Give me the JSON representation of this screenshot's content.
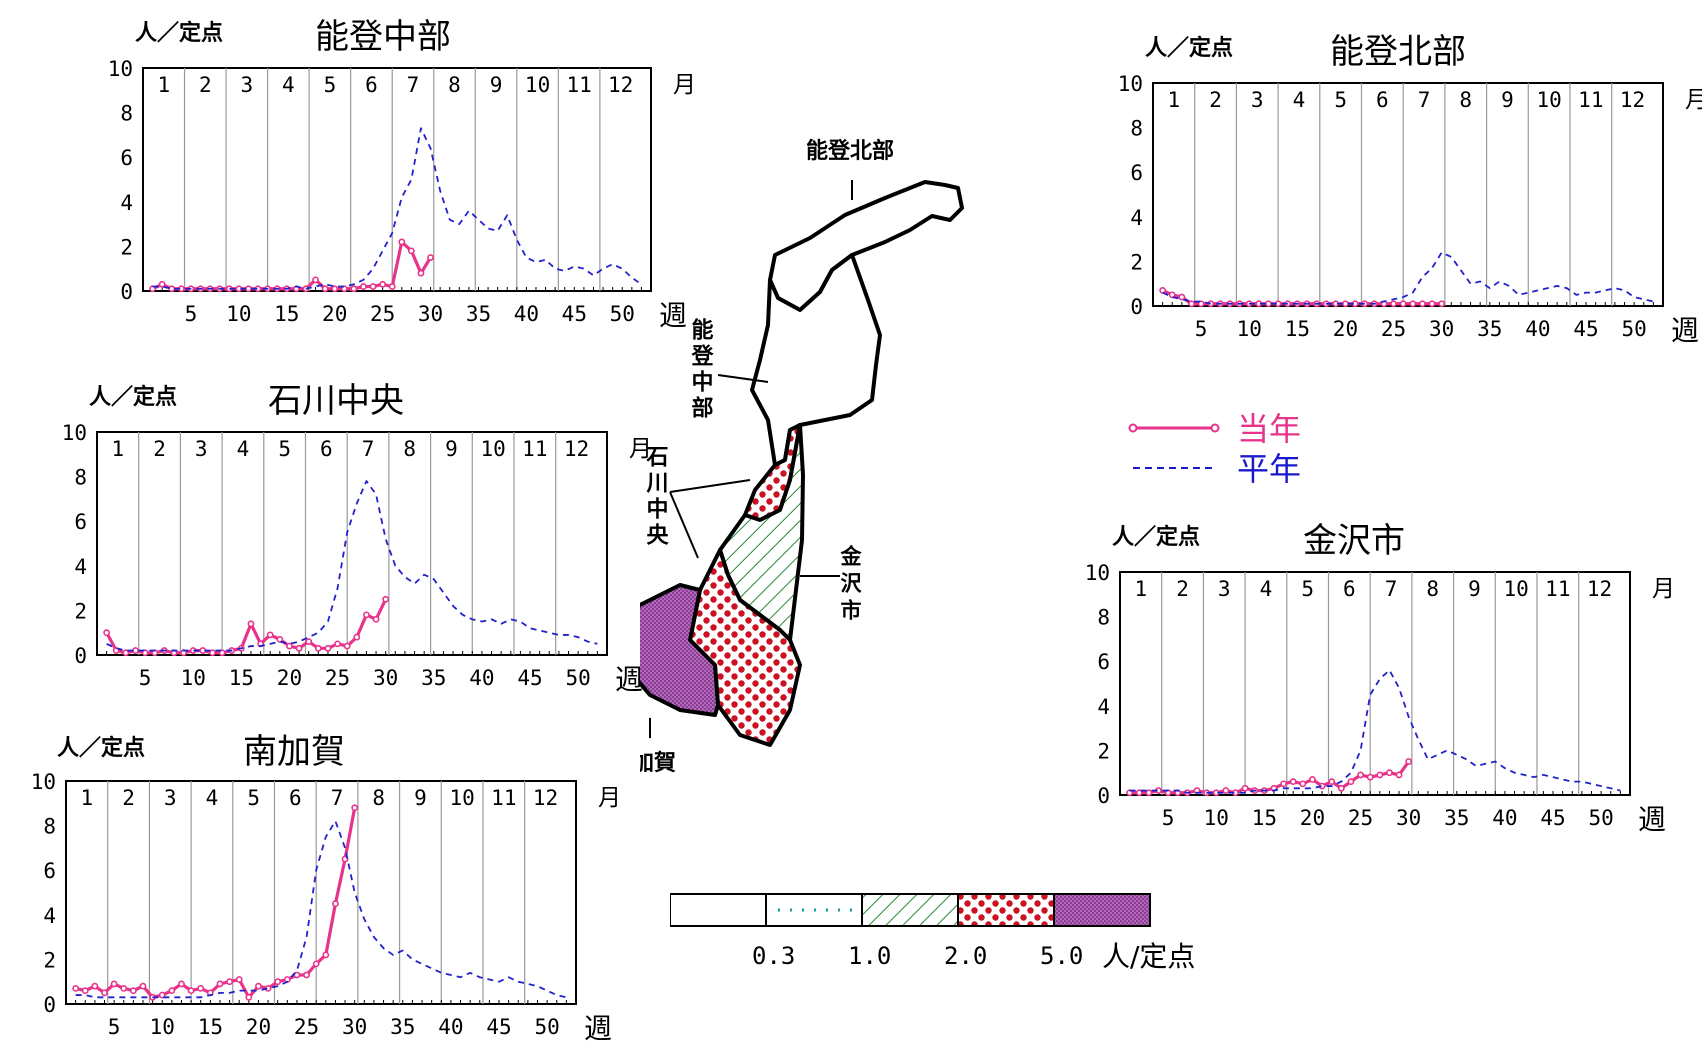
{
  "colors": {
    "current": "#e8338a",
    "average": "#2222cc",
    "frame": "#000000",
    "grid": "#999999",
    "legend_current": "#e8338a",
    "legend_average": "#1a1acc"
  },
  "common": {
    "unit": "人／定点",
    "month_word": "月",
    "week_word": "週",
    "months": [
      "1",
      "2",
      "3",
      "4",
      "5",
      "6",
      "7",
      "8",
      "9",
      "10",
      "11",
      "12"
    ],
    "y_ticks": [
      "0",
      "2",
      "4",
      "6",
      "8",
      "10"
    ],
    "x_ticks": [
      "5",
      "10",
      "15",
      "20",
      "25",
      "30",
      "35",
      "40",
      "45",
      "50"
    ]
  },
  "legend": {
    "current": "当年",
    "average": "平年"
  },
  "map": {
    "labels": {
      "noto_north": "能登北部",
      "noto_mid": "能登中部",
      "ishikawa_central": "石川中央",
      "kanazawa": "金沢市",
      "minami_kaga": "南加賀"
    },
    "fills": {
      "noto_north": "none",
      "noto_mid": "none",
      "ishikawa_central": "dots",
      "kanazawa": "hatch",
      "minami_kaga": "purple"
    }
  },
  "scale": {
    "values": [
      "0.3",
      "1.0",
      "2.0",
      "5.0"
    ],
    "unit": "人/定点",
    "fills": [
      "none",
      "teal-dots",
      "hatch",
      "dots",
      "purple"
    ]
  },
  "chart_data": [
    {
      "id": "noto_mid",
      "type": "line",
      "title": "能登中部",
      "ylabel": "人／定点",
      "xlabel": "週",
      "ylim": [
        0,
        10
      ],
      "xlim": [
        0,
        53
      ],
      "grid": true,
      "series": [
        {
          "name": "当年",
          "x": [
            1,
            2,
            3,
            4,
            5,
            6,
            7,
            8,
            9,
            10,
            11,
            12,
            13,
            14,
            15,
            16,
            17,
            18,
            19,
            20,
            21,
            22,
            23,
            24,
            25,
            26,
            27,
            28,
            29,
            30
          ],
          "values": [
            0.1,
            0.3,
            0.1,
            0.1,
            0.1,
            0.1,
            0.1,
            0.1,
            0.1,
            0.1,
            0.1,
            0.1,
            0.1,
            0.1,
            0.1,
            0.1,
            0.1,
            0.5,
            0.1,
            0.1,
            0.1,
            0.1,
            0.2,
            0.2,
            0.3,
            0.2,
            2.2,
            1.8,
            0.8,
            1.5
          ]
        },
        {
          "name": "平年",
          "x": [
            1,
            2,
            3,
            4,
            5,
            6,
            7,
            8,
            9,
            10,
            11,
            12,
            13,
            14,
            15,
            16,
            17,
            18,
            19,
            20,
            21,
            22,
            23,
            24,
            25,
            26,
            27,
            28,
            29,
            30,
            31,
            32,
            33,
            34,
            35,
            36,
            37,
            38,
            39,
            40,
            41,
            42,
            43,
            44,
            45,
            46,
            47,
            48,
            49,
            50,
            51,
            52
          ],
          "values": [
            0.2,
            0.2,
            0.1,
            0.1,
            0.1,
            0.1,
            0.1,
            0.1,
            0.1,
            0.1,
            0.1,
            0.1,
            0.1,
            0.1,
            0.1,
            0.2,
            0.1,
            0.2,
            0.3,
            0.2,
            0.2,
            0.3,
            0.5,
            1.0,
            1.8,
            2.6,
            4.2,
            5.0,
            7.3,
            6.4,
            4.5,
            3.2,
            3.0,
            3.6,
            3.2,
            2.8,
            2.7,
            3.4,
            2.3,
            1.5,
            1.3,
            1.4,
            1.0,
            0.9,
            1.1,
            1.0,
            0.7,
            1.0,
            1.2,
            1.0,
            0.6,
            0.3
          ]
        }
      ]
    },
    {
      "id": "ishikawa_central",
      "type": "line",
      "title": "石川中央",
      "ylabel": "人／定点",
      "xlabel": "週",
      "ylim": [
        0,
        10
      ],
      "xlim": [
        0,
        53
      ],
      "grid": true,
      "series": [
        {
          "name": "当年",
          "x": [
            1,
            2,
            3,
            4,
            5,
            6,
            7,
            8,
            9,
            10,
            11,
            12,
            13,
            14,
            15,
            16,
            17,
            18,
            19,
            20,
            21,
            22,
            23,
            24,
            25,
            26,
            27,
            28,
            29,
            30
          ],
          "values": [
            1.0,
            0.2,
            0.1,
            0.2,
            0.1,
            0.1,
            0.2,
            0.1,
            0.1,
            0.2,
            0.2,
            0.1,
            0.1,
            0.2,
            0.3,
            1.4,
            0.5,
            0.9,
            0.7,
            0.4,
            0.3,
            0.6,
            0.3,
            0.3,
            0.5,
            0.4,
            0.8,
            1.8,
            1.6,
            2.5
          ]
        },
        {
          "name": "平年",
          "x": [
            1,
            2,
            3,
            4,
            5,
            6,
            7,
            8,
            9,
            10,
            11,
            12,
            13,
            14,
            15,
            16,
            17,
            18,
            19,
            20,
            21,
            22,
            23,
            24,
            25,
            26,
            27,
            28,
            29,
            30,
            31,
            32,
            33,
            34,
            35,
            36,
            37,
            38,
            39,
            40,
            41,
            42,
            43,
            44,
            45,
            46,
            47,
            48,
            49,
            50,
            51,
            52
          ],
          "values": [
            0.5,
            0.3,
            0.2,
            0.2,
            0.2,
            0.2,
            0.2,
            0.2,
            0.2,
            0.2,
            0.2,
            0.2,
            0.2,
            0.2,
            0.3,
            0.4,
            0.4,
            0.5,
            0.6,
            0.5,
            0.6,
            0.8,
            1.0,
            1.5,
            3.0,
            5.5,
            6.8,
            7.8,
            7.2,
            5.2,
            4.0,
            3.5,
            3.2,
            3.6,
            3.4,
            2.8,
            2.2,
            1.8,
            1.6,
            1.5,
            1.6,
            1.4,
            1.6,
            1.5,
            1.2,
            1.1,
            1.0,
            0.9,
            0.9,
            0.8,
            0.6,
            0.5
          ]
        }
      ]
    },
    {
      "id": "minami_kaga",
      "type": "line",
      "title": "南加賀",
      "ylabel": "人／定点",
      "xlabel": "週",
      "ylim": [
        0,
        10
      ],
      "xlim": [
        0,
        53
      ],
      "grid": true,
      "series": [
        {
          "name": "当年",
          "x": [
            1,
            2,
            3,
            4,
            5,
            6,
            7,
            8,
            9,
            10,
            11,
            12,
            13,
            14,
            15,
            16,
            17,
            18,
            19,
            20,
            21,
            22,
            23,
            24,
            25,
            26,
            27,
            28,
            29,
            30
          ],
          "values": [
            0.7,
            0.6,
            0.8,
            0.5,
            0.9,
            0.7,
            0.6,
            0.8,
            0.3,
            0.4,
            0.6,
            0.9,
            0.6,
            0.7,
            0.5,
            0.9,
            1.0,
            1.1,
            0.3,
            0.8,
            0.7,
            1.0,
            1.1,
            1.3,
            1.3,
            1.8,
            2.2,
            4.5,
            6.5,
            8.8
          ]
        },
        {
          "name": "平年",
          "x": [
            1,
            2,
            3,
            4,
            5,
            6,
            7,
            8,
            9,
            10,
            11,
            12,
            13,
            14,
            15,
            16,
            17,
            18,
            19,
            20,
            21,
            22,
            23,
            24,
            25,
            26,
            27,
            28,
            29,
            30,
            31,
            32,
            33,
            34,
            35,
            36,
            37,
            38,
            39,
            40,
            41,
            42,
            43,
            44,
            45,
            46,
            47,
            48,
            49,
            50,
            51,
            52
          ],
          "values": [
            0.4,
            0.4,
            0.3,
            0.3,
            0.3,
            0.3,
            0.3,
            0.3,
            0.3,
            0.3,
            0.3,
            0.3,
            0.3,
            0.3,
            0.4,
            0.5,
            0.5,
            0.6,
            0.6,
            0.6,
            0.7,
            0.8,
            1.0,
            1.5,
            3.0,
            6.0,
            7.5,
            8.2,
            7.0,
            5.0,
            3.8,
            3.0,
            2.5,
            2.2,
            2.4,
            2.0,
            1.8,
            1.6,
            1.4,
            1.3,
            1.2,
            1.4,
            1.2,
            1.1,
            1.0,
            1.2,
            1.0,
            0.9,
            0.8,
            0.6,
            0.4,
            0.3
          ]
        }
      ]
    },
    {
      "id": "noto_north",
      "type": "line",
      "title": "能登北部",
      "ylabel": "人／定点",
      "xlabel": "週",
      "ylim": [
        0,
        10
      ],
      "xlim": [
        0,
        53
      ],
      "grid": true,
      "series": [
        {
          "name": "当年",
          "x": [
            1,
            2,
            3,
            4,
            5,
            6,
            7,
            8,
            9,
            10,
            11,
            12,
            13,
            14,
            15,
            16,
            17,
            18,
            19,
            20,
            21,
            22,
            23,
            24,
            25,
            26,
            27,
            28,
            29,
            30
          ],
          "values": [
            0.7,
            0.5,
            0.4,
            0.1,
            0.1,
            0.1,
            0.1,
            0.1,
            0.1,
            0.1,
            0.1,
            0.1,
            0.1,
            0.1,
            0.1,
            0.1,
            0.1,
            0.1,
            0.1,
            0.1,
            0.1,
            0.1,
            0.1,
            0.1,
            0.1,
            0.1,
            0.1,
            0.1,
            0.1,
            0.1
          ]
        },
        {
          "name": "平年",
          "x": [
            1,
            2,
            3,
            4,
            5,
            6,
            7,
            8,
            9,
            10,
            11,
            12,
            13,
            14,
            15,
            16,
            17,
            18,
            19,
            20,
            21,
            22,
            23,
            24,
            25,
            26,
            27,
            28,
            29,
            30,
            31,
            32,
            33,
            34,
            35,
            36,
            37,
            38,
            39,
            40,
            41,
            42,
            43,
            44,
            45,
            46,
            47,
            48,
            49,
            50,
            51,
            52
          ],
          "values": [
            0.6,
            0.4,
            0.3,
            0.2,
            0.2,
            0.1,
            0.1,
            0.1,
            0.1,
            0.1,
            0.1,
            0.1,
            0.1,
            0.1,
            0.1,
            0.1,
            0.1,
            0.1,
            0.1,
            0.1,
            0.1,
            0.1,
            0.1,
            0.2,
            0.3,
            0.4,
            0.6,
            1.3,
            1.7,
            2.4,
            2.2,
            1.6,
            1.0,
            1.1,
            0.8,
            1.1,
            0.9,
            0.5,
            0.6,
            0.7,
            0.8,
            0.9,
            0.8,
            0.5,
            0.6,
            0.6,
            0.7,
            0.8,
            0.7,
            0.4,
            0.3,
            0.2
          ]
        }
      ]
    },
    {
      "id": "kanazawa",
      "type": "line",
      "title": "金沢市",
      "ylabel": "人／定点",
      "xlabel": "週",
      "ylim": [
        0,
        10
      ],
      "xlim": [
        0,
        53
      ],
      "grid": true,
      "series": [
        {
          "name": "当年",
          "x": [
            1,
            2,
            3,
            4,
            5,
            6,
            7,
            8,
            9,
            10,
            11,
            12,
            13,
            14,
            15,
            16,
            17,
            18,
            19,
            20,
            21,
            22,
            23,
            24,
            25,
            26,
            27,
            28,
            29,
            30
          ],
          "values": [
            0.1,
            0.1,
            0.1,
            0.2,
            0.1,
            0.1,
            0.1,
            0.2,
            0.1,
            0.1,
            0.2,
            0.1,
            0.3,
            0.2,
            0.2,
            0.3,
            0.5,
            0.6,
            0.5,
            0.7,
            0.4,
            0.6,
            0.3,
            0.6,
            0.9,
            0.8,
            0.9,
            1.0,
            0.9,
            1.5
          ]
        },
        {
          "name": "平年",
          "x": [
            1,
            2,
            3,
            4,
            5,
            6,
            7,
            8,
            9,
            10,
            11,
            12,
            13,
            14,
            15,
            16,
            17,
            18,
            19,
            20,
            21,
            22,
            23,
            24,
            25,
            26,
            27,
            28,
            29,
            30,
            31,
            32,
            33,
            34,
            35,
            36,
            37,
            38,
            39,
            40,
            41,
            42,
            43,
            44,
            45,
            46,
            47,
            48,
            49,
            50,
            51,
            52
          ],
          "values": [
            0.2,
            0.2,
            0.2,
            0.2,
            0.2,
            0.2,
            0.1,
            0.1,
            0.1,
            0.1,
            0.1,
            0.1,
            0.1,
            0.2,
            0.2,
            0.2,
            0.3,
            0.3,
            0.3,
            0.3,
            0.4,
            0.4,
            0.6,
            1.0,
            2.0,
            4.5,
            5.2,
            5.6,
            4.8,
            3.5,
            2.5,
            1.6,
            1.8,
            2.0,
            1.8,
            1.6,
            1.3,
            1.4,
            1.5,
            1.2,
            1.0,
            0.9,
            0.8,
            0.9,
            0.8,
            0.7,
            0.6,
            0.6,
            0.5,
            0.4,
            0.3,
            0.2
          ]
        }
      ]
    }
  ]
}
